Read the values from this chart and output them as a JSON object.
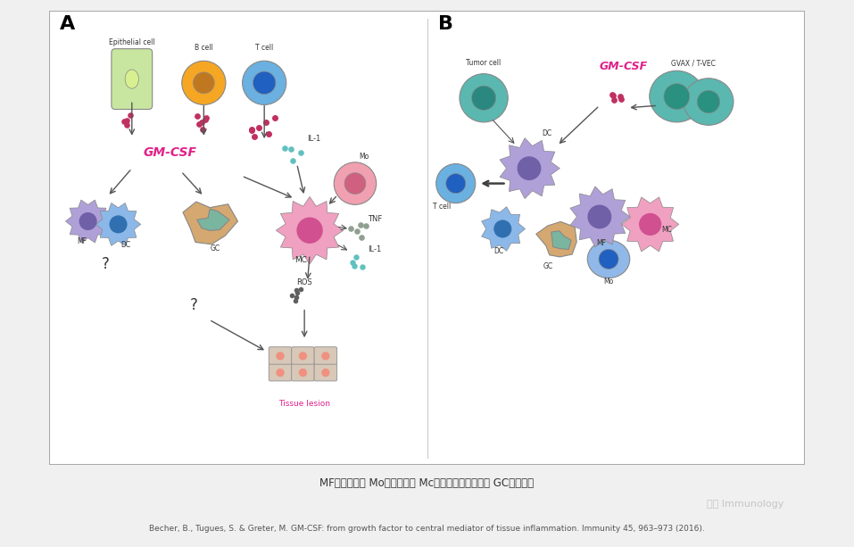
{
  "title": "",
  "bg_color": "#f0f0f0",
  "main_bg": "#ffffff",
  "border_color": "#999999",
  "panel_A_label": "A",
  "panel_B_label": "B",
  "footer_text1": "MF：巨噬细胞 Mo：单核细胞 Mc：单核细胞衍生细胞 GC：粒细胞",
  "footer_text2": "Becher, B., Tugues, S. & Greter, M. GM-CSF: from growth factor to central mediator of tissue inflammation. Immunity 45, 963–973 (2016).",
  "brand_text": "闲谈 Immunology",
  "cell_colors": {
    "epithelial": "#c8e6a0",
    "b_cell": "#f5a623",
    "t_cell": "#6ab0e0",
    "mf": "#b0a0d8",
    "dc": "#8bb8e8",
    "gc": "#d4a870",
    "gc_inner": "#7ab5a0",
    "mo": "#f0a0b0",
    "mc": "#f0a0c0",
    "tissue": "#e8d0c0",
    "tumor": "#5ab8b0",
    "gvax": "#5ab8b0",
    "dot_color": "#c03060",
    "il1_dot": "#60c0c0",
    "tnf_dot": "#90a090",
    "ros_dot": "#606060"
  },
  "gmcsf_color": "#e0208a",
  "arrow_color": "#404040",
  "label_color": "#404040",
  "panel_label_color": "#000000"
}
